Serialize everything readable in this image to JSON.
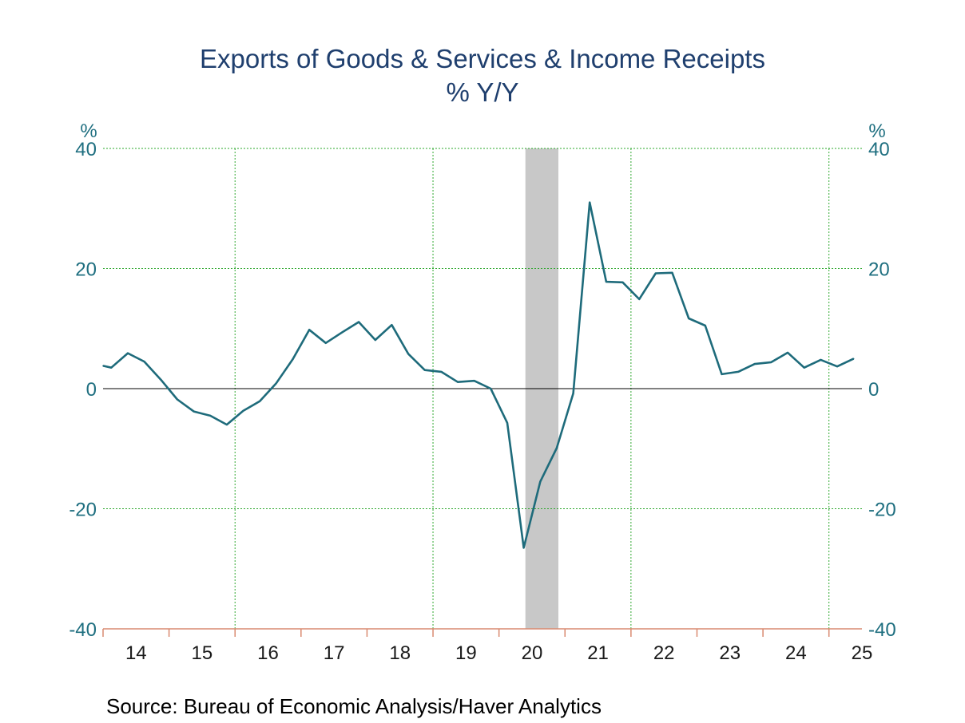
{
  "chart_data": {
    "type": "line",
    "title": "Exports of Goods & Services & Income Receipts",
    "subtitle": "% Y/Y",
    "ylabel_left": "%",
    "ylabel_right": "%",
    "ylim": [
      -40,
      40
    ],
    "yticks": [
      40,
      20,
      0,
      -20,
      -40
    ],
    "xlim": [
      2013.5,
      2025.0
    ],
    "xtick_labels": [
      {
        "label": "14",
        "x": 2014.0
      },
      {
        "label": "15",
        "x": 2015.0
      },
      {
        "label": "16",
        "x": 2016.0
      },
      {
        "label": "17",
        "x": 2017.0
      },
      {
        "label": "18",
        "x": 2018.0
      },
      {
        "label": "19",
        "x": 2019.0
      },
      {
        "label": "20",
        "x": 2020.0
      },
      {
        "label": "21",
        "x": 2021.0
      },
      {
        "label": "22",
        "x": 2022.0
      },
      {
        "label": "23",
        "x": 2023.0
      },
      {
        "label": "24",
        "x": 2024.0
      },
      {
        "label": "25",
        "x": 2025.0
      }
    ],
    "recession": {
      "start": 2019.9,
      "end": 2020.4
    },
    "grid": {
      "vertical_dotted": [
        2015.5,
        2018.5,
        2021.5,
        2024.5
      ],
      "horizontal_dotted": [
        40,
        20,
        -20
      ]
    },
    "zero_line": 0,
    "series": [
      {
        "color": "#1e6b7b",
        "points": [
          [
            2013.5,
            3.8
          ],
          [
            2013.625,
            3.5
          ],
          [
            2013.875,
            5.9
          ],
          [
            2014.125,
            4.5
          ],
          [
            2014.375,
            1.5
          ],
          [
            2014.625,
            -1.8
          ],
          [
            2014.875,
            -3.8
          ],
          [
            2015.125,
            -4.5
          ],
          [
            2015.375,
            -6.0
          ],
          [
            2015.625,
            -3.7
          ],
          [
            2015.875,
            -2.1
          ],
          [
            2016.125,
            0.9
          ],
          [
            2016.375,
            4.9
          ],
          [
            2016.625,
            9.8
          ],
          [
            2016.875,
            7.6
          ],
          [
            2017.125,
            9.4
          ],
          [
            2017.375,
            11.1
          ],
          [
            2017.625,
            8.1
          ],
          [
            2017.875,
            10.6
          ],
          [
            2018.125,
            5.8
          ],
          [
            2018.375,
            3.1
          ],
          [
            2018.625,
            2.8
          ],
          [
            2018.875,
            1.1
          ],
          [
            2019.125,
            1.3
          ],
          [
            2019.375,
            0.0
          ],
          [
            2019.625,
            -5.7
          ],
          [
            2019.875,
            -26.5
          ],
          [
            2020.125,
            -15.5
          ],
          [
            2020.375,
            -9.9
          ],
          [
            2020.625,
            -0.8
          ],
          [
            2020.875,
            31.0
          ],
          [
            2021.125,
            17.8
          ],
          [
            2021.375,
            17.7
          ],
          [
            2021.625,
            14.9
          ],
          [
            2021.875,
            19.2
          ],
          [
            2022.125,
            19.3
          ],
          [
            2022.375,
            11.7
          ],
          [
            2022.625,
            10.5
          ],
          [
            2022.875,
            2.4
          ],
          [
            2023.125,
            2.8
          ],
          [
            2023.375,
            4.1
          ],
          [
            2023.625,
            4.4
          ],
          [
            2023.875,
            6.0
          ],
          [
            2024.125,
            3.5
          ],
          [
            2024.375,
            4.8
          ],
          [
            2024.625,
            3.7
          ],
          [
            2024.875,
            5.0
          ]
        ]
      }
    ]
  },
  "source": "Source:  Bureau of Economic Analysis/Haver Analytics",
  "colors": {
    "title": "#1f3f6e",
    "axis_text": "#1f6f80",
    "line": "#1e6b7b",
    "grid": "#2ea82e",
    "recession": "#c8c8c8",
    "bottom_axis": "#d98a70"
  }
}
